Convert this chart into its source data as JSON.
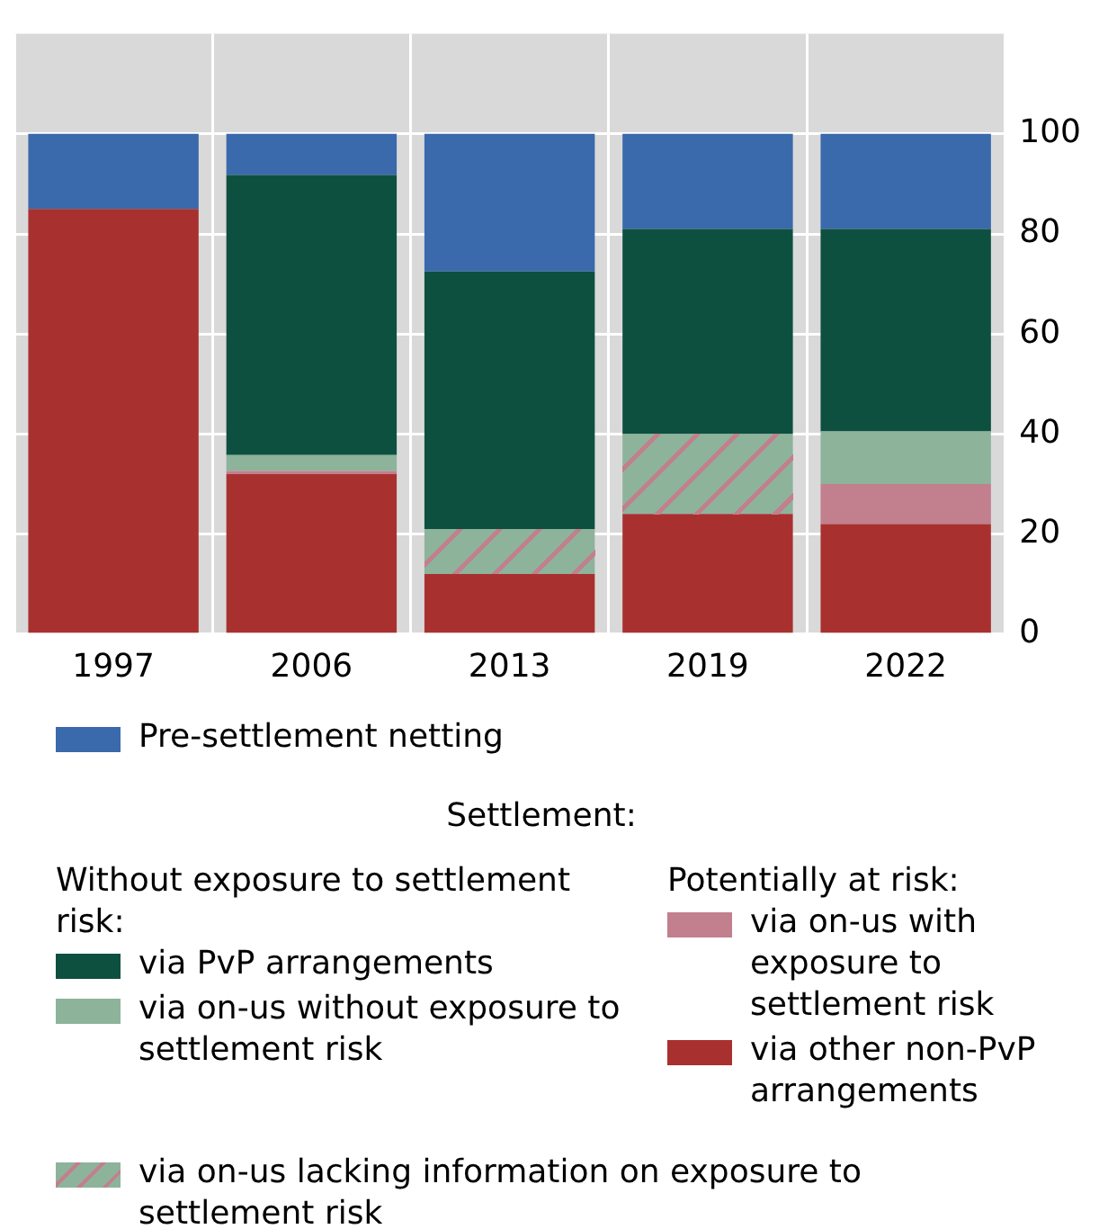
{
  "chart_data": {
    "type": "bar",
    "stacked": true,
    "categories": [
      "1997",
      "2006",
      "2013",
      "2019",
      "2022"
    ],
    "series": [
      {
        "name": "via other non-PvP arrangements",
        "color": "#a8312f",
        "values": [
          85,
          32,
          12,
          24,
          22
        ]
      },
      {
        "name": "via on-us with exposure to settlement risk",
        "color": "#c27f8e",
        "values": [
          null,
          0.6,
          null,
          null,
          8
        ]
      },
      {
        "name": "via on-us lacking information on exposure to settlement risk",
        "color": "#8db39b",
        "values": [
          null,
          null,
          9,
          16,
          null
        ]
      },
      {
        "name": "via on-us without exposure to settlement risk",
        "color": "#8db39b",
        "values": [
          null,
          3.2,
          null,
          null,
          10.5
        ]
      },
      {
        "name": "via PvP arrangements",
        "color": "#0e5040",
        "values": [
          null,
          56,
          51.5,
          41,
          40.5
        ]
      },
      {
        "name": "Pre-settlement netting",
        "color": "#3a69ac",
        "values": [
          15,
          8.2,
          27.5,
          19,
          19
        ]
      }
    ],
    "ylim": [
      0,
      120
    ],
    "yticks": [
      0,
      20,
      40,
      60,
      80,
      100
    ],
    "grid": true,
    "legend": "bottom",
    "legend_title": "Settlement:",
    "annotations": [
      "Without exposure to settlement risk:",
      "Potentially at risk:"
    ]
  }
}
